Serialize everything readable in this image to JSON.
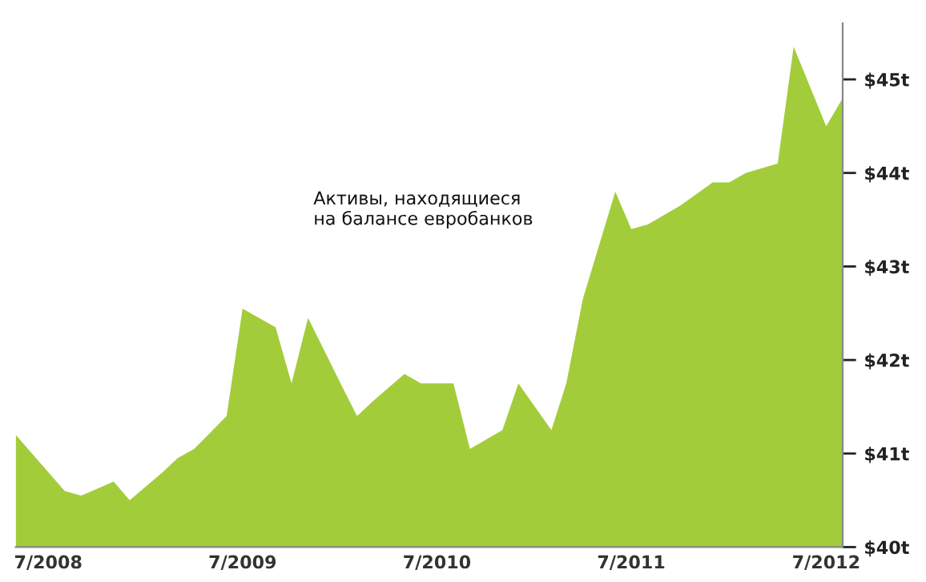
{
  "chart_data": {
    "type": "area",
    "annotations": [
      "Активы, находящиеся\nна балансе евробанков"
    ],
    "x": [
      "2008-05",
      "2008-08",
      "2008-09",
      "2008-11",
      "2008-12",
      "2009-02",
      "2009-03",
      "2009-04",
      "2009-06",
      "2009-07",
      "2009-09",
      "2009-10",
      "2009-11",
      "2010-01",
      "2010-02",
      "2010-03",
      "2010-05",
      "2010-06",
      "2010-08",
      "2010-09",
      "2010-11",
      "2010-12",
      "2011-02",
      "2011-03",
      "2011-04",
      "2011-06",
      "2011-07",
      "2011-08",
      "2011-10",
      "2011-12",
      "2012-01",
      "2012-02",
      "2012-04",
      "2012-05",
      "2012-07",
      "2012-08"
    ],
    "series": [
      {
        "color": "#a3cc3a",
        "values": [
          41.2,
          40.6,
          40.55,
          40.7,
          40.5,
          40.8,
          40.95,
          41.05,
          41.4,
          42.55,
          42.35,
          41.75,
          42.45,
          41.75,
          41.4,
          41.55,
          41.85,
          41.75,
          41.75,
          41.05,
          41.25,
          41.75,
          41.25,
          41.75,
          42.65,
          43.8,
          43.4,
          43.45,
          43.65,
          43.9,
          43.9,
          44.0,
          44.1,
          45.35,
          44.5,
          44.8
        ]
      }
    ],
    "xlim": [
      "2008-05",
      "2012-08"
    ],
    "xticks": [
      {
        "value": "2008-07",
        "label": "7/2008"
      },
      {
        "value": "2009-07",
        "label": "7/2009"
      },
      {
        "value": "2010-07",
        "label": "7/2010"
      },
      {
        "value": "2011-07",
        "label": "7/2011"
      },
      {
        "value": "2012-07",
        "label": "7/2012"
      }
    ],
    "ylim": [
      40,
      45.6
    ],
    "yticks": [
      {
        "value": 40,
        "label": "$40t"
      },
      {
        "value": 41,
        "label": "$41t"
      },
      {
        "value": 42,
        "label": "$42t"
      },
      {
        "value": 43,
        "label": "$43t"
      },
      {
        "value": 44,
        "label": "$44t"
      },
      {
        "value": 45,
        "label": "$45t"
      }
    ],
    "grid": false
  }
}
